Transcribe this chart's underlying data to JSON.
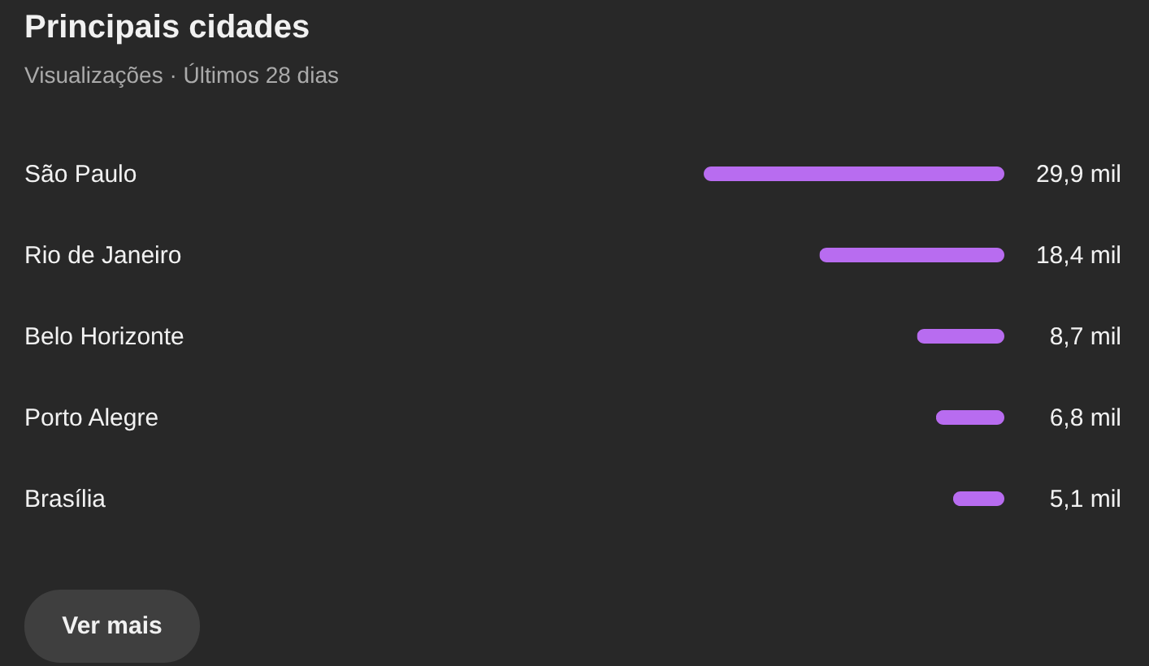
{
  "chart_data": {
    "type": "bar",
    "orientation": "horizontal",
    "title": "Principais cidades",
    "subtitle": "Visualizações · Últimos 28 dias",
    "categories": [
      "São Paulo",
      "Rio de Janeiro",
      "Belo Horizonte",
      "Porto Alegre",
      "Brasília"
    ],
    "values": [
      29.9,
      18.4,
      8.7,
      6.8,
      5.1
    ],
    "value_labels": [
      "29,9 mil",
      "18,4 mil",
      "8,7 mil",
      "6,8 mil",
      "5,1 mil"
    ],
    "color": "#b86cf0",
    "annotations": [
      "Ver mais"
    ]
  }
}
